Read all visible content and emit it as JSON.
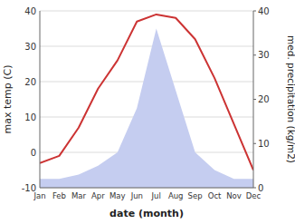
{
  "chart_data": {
    "type": "line",
    "categories": [
      "Jan",
      "Feb",
      "Mar",
      "Apr",
      "May",
      "Jun",
      "Jul",
      "Aug",
      "Sep",
      "Oct",
      "Nov",
      "Dec"
    ],
    "series": [
      {
        "type": "line",
        "color": "#cc3333",
        "values": [
          -3,
          -1,
          7,
          18,
          26,
          37,
          39,
          38,
          32,
          21,
          8,
          -5
        ]
      },
      {
        "type": "area",
        "color": "#c5cdf0",
        "axis": "y2",
        "values": [
          2,
          2,
          3,
          5,
          8,
          18,
          36,
          22,
          8,
          4,
          2,
          2
        ]
      }
    ],
    "xlabel": "date (month)",
    "ylabel": "max temp (C)",
    "y2label": "med. precipitation (kg/m2)",
    "ylim": [
      -10,
      40
    ],
    "yticks": [
      -10,
      0,
      10,
      20,
      30,
      40
    ],
    "y2lim": [
      0,
      40
    ],
    "y2ticks": [
      0,
      10,
      20,
      30,
      40
    ],
    "grid": true
  }
}
